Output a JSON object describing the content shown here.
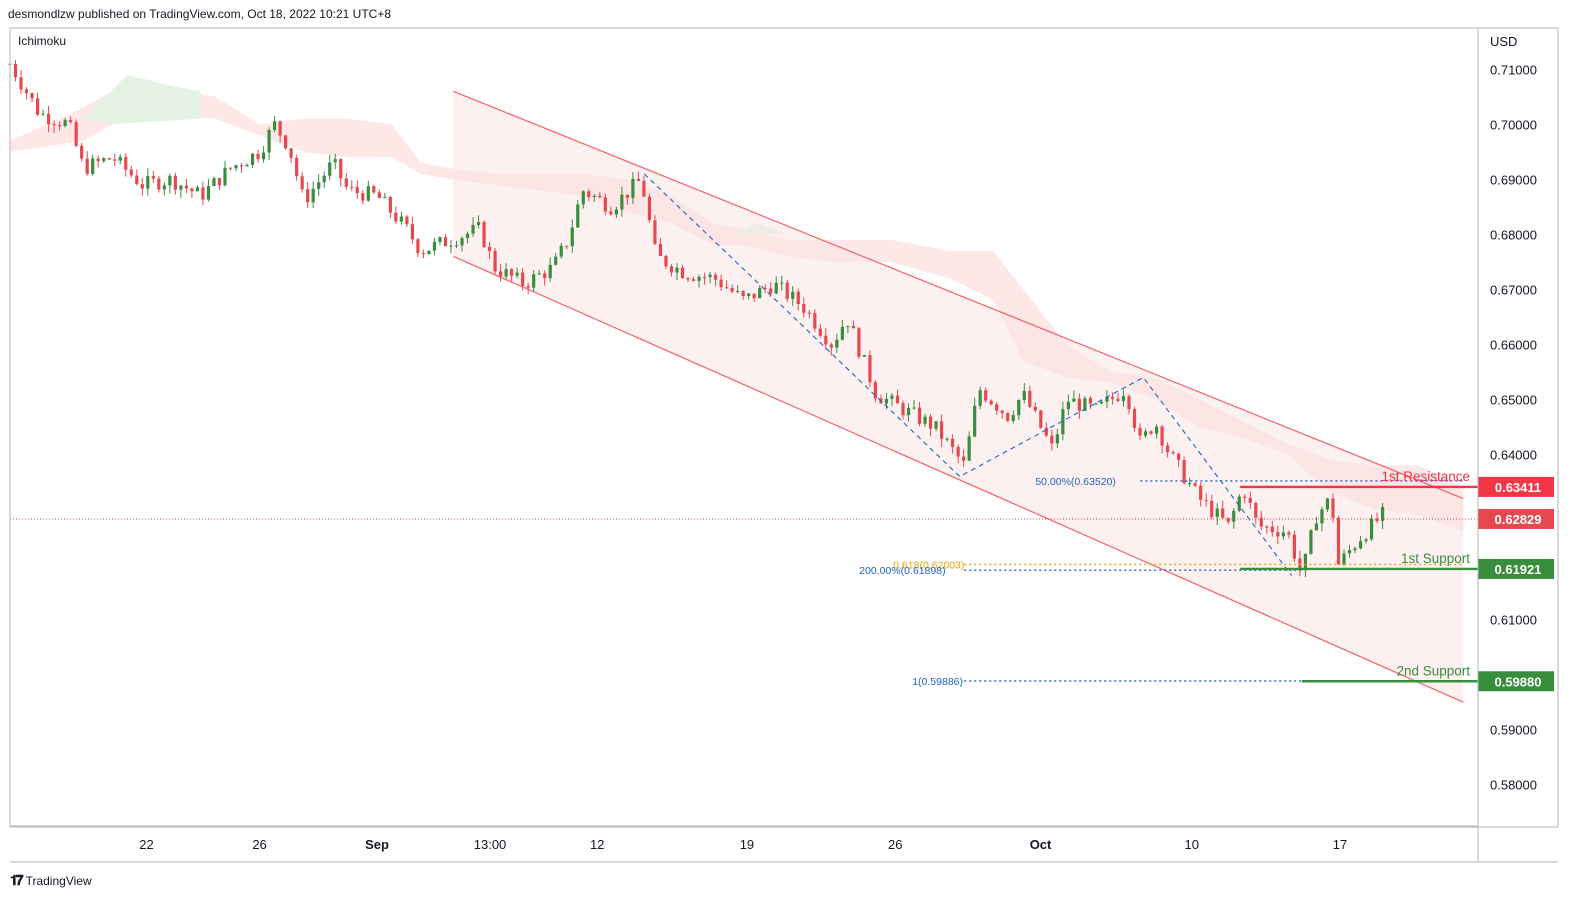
{
  "header": {
    "published": "desmondlzw published on TradingView.com, Oct 18, 2022 10:21 UTC+8",
    "indicator": "Ichimoku",
    "currency": "USD",
    "footer_brand": "TradingView"
  },
  "colors": {
    "up": "#26a69a",
    "up_candle": "#388e3c",
    "down": "#e5494f",
    "resistance": "#f23645",
    "support": "#388e3c",
    "channel": "#f4626a",
    "fib": "#1e63c8",
    "fib_gold": "#e0a800",
    "cloud_red": "#fde3e3",
    "cloud_green": "#e4f3e6"
  },
  "chart_data": {
    "type": "candlestick",
    "ylim": [
      0.5725,
      0.7175
    ],
    "y_ticks": [
      "0.71000",
      "0.70000",
      "0.69000",
      "0.68000",
      "0.67000",
      "0.66000",
      "0.65000",
      "0.64000",
      "0.61000",
      "0.59000",
      "0.58000"
    ],
    "y_tick_values": [
      0.71,
      0.7,
      0.69,
      0.68,
      0.67,
      0.66,
      0.65,
      0.64,
      0.61,
      0.59,
      0.58
    ],
    "x_ticks": [
      {
        "label": "22",
        "bold": false,
        "t": 0.093
      },
      {
        "label": "26",
        "bold": false,
        "t": 0.17
      },
      {
        "label": "Sep",
        "bold": true,
        "t": 0.25
      },
      {
        "label": "13:00",
        "bold": false,
        "t": 0.327
      },
      {
        "label": "12",
        "bold": false,
        "t": 0.4
      },
      {
        "label": "19",
        "bold": false,
        "t": 0.502
      },
      {
        "label": "26",
        "bold": false,
        "t": 0.603
      },
      {
        "label": "Oct",
        "bold": true,
        "t": 0.702
      },
      {
        "label": "10",
        "bold": false,
        "t": 0.805
      },
      {
        "label": "17",
        "bold": false,
        "t": 0.906
      }
    ],
    "price_path": [
      [
        0.0,
        0.711
      ],
      [
        0.02,
        0.702
      ],
      [
        0.04,
        0.7
      ],
      [
        0.05,
        0.692
      ],
      [
        0.07,
        0.694
      ],
      [
        0.09,
        0.689
      ],
      [
        0.11,
        0.69
      ],
      [
        0.13,
        0.687
      ],
      [
        0.15,
        0.692
      ],
      [
        0.17,
        0.695
      ],
      [
        0.18,
        0.7
      ],
      [
        0.19,
        0.696
      ],
      [
        0.2,
        0.686
      ],
      [
        0.22,
        0.693
      ],
      [
        0.23,
        0.688
      ],
      [
        0.25,
        0.687
      ],
      [
        0.27,
        0.681
      ],
      [
        0.28,
        0.677
      ],
      [
        0.3,
        0.679
      ],
      [
        0.32,
        0.681
      ],
      [
        0.33,
        0.674
      ],
      [
        0.35,
        0.671
      ],
      [
        0.37,
        0.674
      ],
      [
        0.38,
        0.679
      ],
      [
        0.39,
        0.688
      ],
      [
        0.41,
        0.685
      ],
      [
        0.43,
        0.69
      ],
      [
        0.44,
        0.676
      ],
      [
        0.46,
        0.673
      ],
      [
        0.48,
        0.672
      ],
      [
        0.5,
        0.668
      ],
      [
        0.52,
        0.671
      ],
      [
        0.54,
        0.667
      ],
      [
        0.56,
        0.66
      ],
      [
        0.57,
        0.665
      ],
      [
        0.59,
        0.651
      ],
      [
        0.61,
        0.648
      ],
      [
        0.63,
        0.645
      ],
      [
        0.65,
        0.638
      ],
      [
        0.66,
        0.652
      ],
      [
        0.68,
        0.647
      ],
      [
        0.69,
        0.651
      ],
      [
        0.71,
        0.641
      ],
      [
        0.72,
        0.65
      ],
      [
        0.74,
        0.648
      ],
      [
        0.76,
        0.652
      ],
      [
        0.77,
        0.642
      ],
      [
        0.78,
        0.646
      ],
      [
        0.79,
        0.64
      ],
      [
        0.81,
        0.632
      ],
      [
        0.83,
        0.627
      ],
      [
        0.84,
        0.634
      ],
      [
        0.85,
        0.627
      ],
      [
        0.87,
        0.626
      ],
      [
        0.88,
        0.618
      ],
      [
        0.89,
        0.629
      ],
      [
        0.9,
        0.632
      ],
      [
        0.905,
        0.62
      ],
      [
        0.92,
        0.625
      ],
      [
        0.935,
        0.629
      ]
    ],
    "channel": {
      "upper": [
        [
          0.302,
          0.706
        ],
        [
          0.99,
          0.632
        ]
      ],
      "lower": [
        [
          0.302,
          0.676
        ],
        [
          0.99,
          0.595
        ]
      ]
    },
    "levels": [
      {
        "name": "1st Resistance",
        "value": 0.63411,
        "label": "0.63411",
        "kind": "resistance"
      },
      {
        "name": "1st Support",
        "value": 0.61921,
        "label": "0.61921",
        "kind": "support"
      },
      {
        "name": "2nd Support",
        "value": 0.5988,
        "label": "0.59880",
        "kind": "support"
      }
    ],
    "current_price": {
      "value": 0.62829,
      "label": "0.62829"
    },
    "fib_labels": [
      {
        "text": "50.00%(0.63520)",
        "value": 0.6352,
        "t_text": 0.7,
        "t_from": 0.77,
        "t_to": 0.99,
        "color": "fib"
      },
      {
        "text": "0.618(0.62003)",
        "value": 0.62003,
        "t_text": 0.6,
        "t_from": 0.65,
        "t_to": 0.99,
        "color": "fib_gold"
      },
      {
        "text": "200.00%(0.61898)",
        "value": 0.61898,
        "t_text": 0.582,
        "t_from": 0.65,
        "t_to": 0.88,
        "color": "fib"
      },
      {
        "text": "1(0.59886)",
        "value": 0.59886,
        "t_text": 0.606,
        "t_from": 0.65,
        "t_to": 0.88,
        "color": "fib"
      }
    ],
    "dashed_path": [
      [
        0.432,
        0.691
      ],
      [
        0.647,
        0.636
      ],
      [
        0.772,
        0.654
      ],
      [
        0.873,
        0.618
      ]
    ],
    "cloud": [
      [
        0.0,
        0.697,
        0.695
      ],
      [
        0.05,
        0.703,
        0.697
      ],
      [
        0.07,
        0.706,
        0.7
      ],
      [
        0.1,
        0.707,
        0.702
      ],
      [
        0.14,
        0.705,
        0.701
      ],
      [
        0.17,
        0.7,
        0.698
      ],
      [
        0.2,
        0.701,
        0.695
      ],
      [
        0.23,
        0.701,
        0.694
      ],
      [
        0.26,
        0.7,
        0.694
      ],
      [
        0.28,
        0.693,
        0.691
      ],
      [
        0.3,
        0.692,
        0.69
      ],
      [
        0.33,
        0.691,
        0.689
      ],
      [
        0.36,
        0.691,
        0.688
      ],
      [
        0.39,
        0.691,
        0.687
      ],
      [
        0.42,
        0.69,
        0.684
      ],
      [
        0.45,
        0.687,
        0.682
      ],
      [
        0.48,
        0.682,
        0.678
      ],
      [
        0.5,
        0.681,
        0.678
      ],
      [
        0.53,
        0.679,
        0.676
      ],
      [
        0.56,
        0.679,
        0.675
      ],
      [
        0.6,
        0.679,
        0.675
      ],
      [
        0.64,
        0.677,
        0.672
      ],
      [
        0.67,
        0.677,
        0.668
      ],
      [
        0.69,
        0.67,
        0.657
      ],
      [
        0.72,
        0.66,
        0.654
      ],
      [
        0.75,
        0.655,
        0.653
      ],
      [
        0.78,
        0.654,
        0.65
      ],
      [
        0.81,
        0.65,
        0.645
      ],
      [
        0.84,
        0.646,
        0.643
      ],
      [
        0.87,
        0.642,
        0.64
      ],
      [
        0.9,
        0.639,
        0.633
      ],
      [
        0.93,
        0.638,
        0.63
      ],
      [
        0.96,
        0.638,
        0.629
      ],
      [
        0.99,
        0.634,
        0.626
      ]
    ]
  }
}
